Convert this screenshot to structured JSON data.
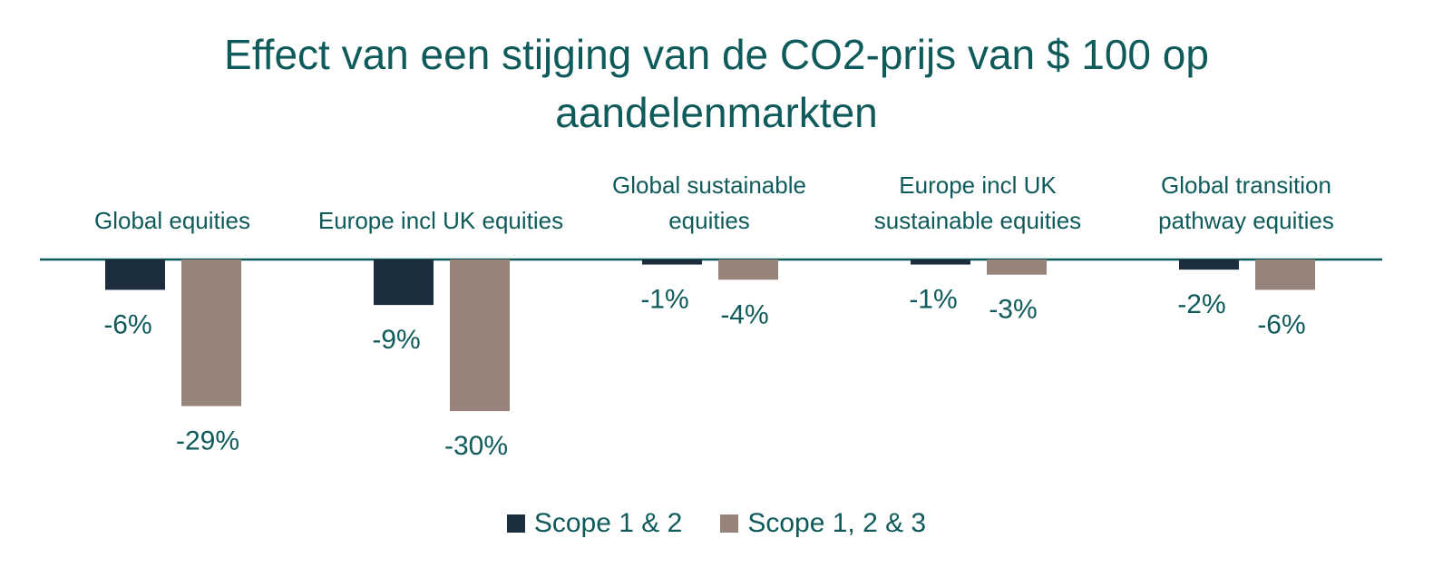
{
  "colors": {
    "text": "#0f5a5a",
    "axis": "#0f5a5a",
    "series_dark": "#1c2e3e",
    "series_light": "#968379"
  },
  "chart_data": {
    "type": "bar",
    "title_lines": [
      "Effect van een stijging van de CO2-prijs van $ 100 op",
      "aandelenmarkten"
    ],
    "categories": [
      "Global equities",
      "Europe incl UK equities",
      "Global sustainable equities",
      "Europe incl UK sustainable equities",
      "Global transition pathway equities"
    ],
    "category_lines": [
      [
        "Global equities"
      ],
      [
        "Europe incl UK equities"
      ],
      [
        "Global sustainable",
        "equities"
      ],
      [
        "Europe incl UK",
        "sustainable equities"
      ],
      [
        "Global transition",
        "pathway equities"
      ]
    ],
    "series": [
      {
        "name": "Scope 1 & 2",
        "values": [
          -6,
          -9,
          -1,
          -1,
          -2
        ],
        "labels": [
          "-6%",
          "-9%",
          "-1%",
          "-1%",
          "-2%"
        ],
        "color": "#1c2e3e"
      },
      {
        "name": "Scope 1, 2 & 3",
        "values": [
          -29,
          -30,
          -4,
          -3,
          -6
        ],
        "labels": [
          "-29%",
          "-30%",
          "-4%",
          "-3%",
          "-6%"
        ],
        "color": "#968379"
      }
    ],
    "ylim": [
      -35,
      0
    ],
    "grid": false,
    "legend_position": "bottom-center"
  }
}
